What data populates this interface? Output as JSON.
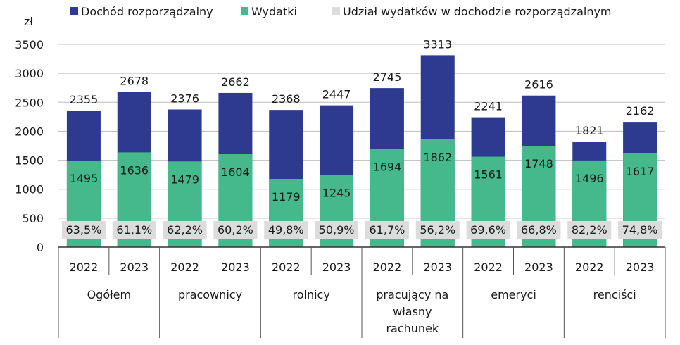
{
  "chart_data": {
    "type": "bar",
    "ylabel": "zł",
    "ylim": [
      0,
      3500
    ],
    "yticks": [
      0,
      500,
      1000,
      1500,
      2000,
      2500,
      3000,
      3500
    ],
    "grid": true,
    "legend_placement": "top",
    "groups": [
      "Ogółem",
      "pracownicy",
      "rolnicy",
      "pracujący na własny rachunek",
      "emeryci",
      "renciści"
    ],
    "group_label_lines": [
      [
        "Ogółem"
      ],
      [
        "pracownicy"
      ],
      [
        "rolnicy"
      ],
      [
        "pracujący na",
        "własny",
        "rachunek"
      ],
      [
        "emeryci"
      ],
      [
        "renciści"
      ]
    ],
    "years": [
      "2022",
      "2023"
    ],
    "series": [
      {
        "name": "Dochód rozporządzalny",
        "color": "#2e3a8f",
        "values": [
          2355,
          2678,
          2376,
          2662,
          2368,
          2447,
          2745,
          3313,
          2241,
          2616,
          1821,
          2162
        ]
      },
      {
        "name": "Wydatki",
        "color": "#45b98b",
        "values": [
          1495,
          1636,
          1479,
          1604,
          1179,
          1245,
          1694,
          1862,
          1561,
          1748,
          1496,
          1617
        ]
      },
      {
        "name": "Udział wydatków w dochodzie rozporządzalnym",
        "color": "#dcdcdc",
        "values": [
          "63,5%",
          "61,1%",
          "62,2%",
          "60,2%",
          "49,8%",
          "50,9%",
          "61,7%",
          "56,2%",
          "69,6%",
          "66,8%",
          "82,2%",
          "74,8%"
        ]
      }
    ]
  }
}
